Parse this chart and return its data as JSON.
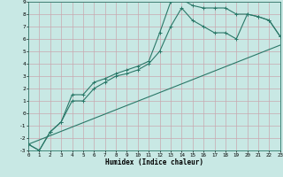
{
  "xlabel": "Humidex (Indice chaleur)",
  "xlim": [
    0,
    23
  ],
  "ylim": [
    -3,
    9
  ],
  "xticks": [
    0,
    1,
    2,
    3,
    4,
    5,
    6,
    7,
    8,
    9,
    10,
    11,
    12,
    13,
    14,
    15,
    16,
    17,
    18,
    19,
    20,
    21,
    22,
    23
  ],
  "yticks": [
    -3,
    -2,
    -1,
    0,
    1,
    2,
    3,
    4,
    5,
    6,
    7,
    8,
    9
  ],
  "bg_color": "#c8e8e4",
  "grid_color": "#c8a8b0",
  "line_color": "#2a7868",
  "line1_x": [
    0,
    1,
    2,
    3,
    4,
    5,
    6,
    7,
    8,
    9,
    10,
    11,
    12,
    13,
    14,
    15,
    16,
    17,
    18,
    19,
    20,
    21,
    22,
    23
  ],
  "line1_y": [
    -2.5,
    -3.0,
    -1.5,
    -0.7,
    1.5,
    1.5,
    2.5,
    2.8,
    3.2,
    3.5,
    3.8,
    4.2,
    6.5,
    9.0,
    9.2,
    8.7,
    8.5,
    8.5,
    8.5,
    8.0,
    8.0,
    7.8,
    7.5,
    6.2
  ],
  "line2_x": [
    0,
    1,
    2,
    3,
    4,
    5,
    6,
    7,
    8,
    9,
    10,
    11,
    12,
    13,
    14,
    15,
    16,
    17,
    18,
    19,
    20,
    21,
    22,
    23
  ],
  "line2_y": [
    -2.5,
    -3.0,
    -1.5,
    -0.7,
    1.0,
    1.0,
    2.0,
    2.5,
    3.0,
    3.2,
    3.5,
    4.0,
    5.0,
    7.0,
    8.5,
    7.5,
    7.0,
    6.5,
    6.5,
    6.0,
    8.0,
    7.8,
    7.5,
    6.2
  ],
  "line3_x": [
    0,
    23
  ],
  "line3_y": [
    -2.5,
    5.5
  ]
}
